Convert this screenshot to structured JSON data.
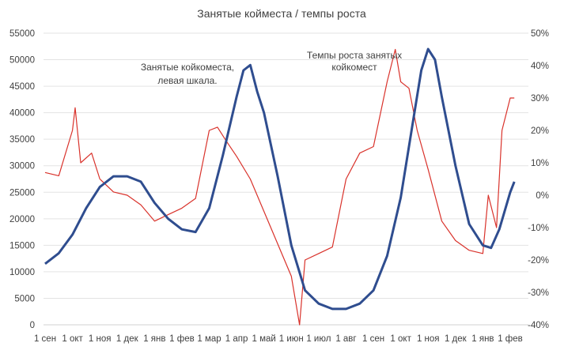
{
  "chart_data": {
    "type": "line",
    "title": "Занятые койместа / темпы роста",
    "x_unit": "months since 1 сен",
    "x_tick_labels": [
      "1 сен",
      "1 окт",
      "1 ноя",
      "1 дек",
      "1 янв",
      "1 фев",
      "1 мар",
      "1 апр",
      "1 май",
      "1 июн",
      "1 июл",
      "1 авг",
      "1 сен",
      "1 окт",
      "1 ноя",
      "1 дек",
      "1 янв",
      "1 фев"
    ],
    "y_left": {
      "range": [
        0,
        55000
      ],
      "ticks": [
        "0",
        "5000",
        "10000",
        "15000",
        "20000",
        "25000",
        "30000",
        "35000",
        "40000",
        "45000",
        "50000",
        "55000"
      ]
    },
    "y_right": {
      "range": [
        -40,
        50
      ],
      "ticks": [
        "-40%",
        "-30%",
        "-20%",
        "-10%",
        "0%",
        "10%",
        "20%",
        "30%",
        "40%",
        "50%"
      ]
    },
    "grid": true,
    "annotations": [
      "Занятые койкоместа,",
      "левая шкала.",
      "Темпы роста занятых",
      "койкомест"
    ],
    "series": [
      {
        "name": "Занятые койкоместа",
        "axis": "left",
        "color": "#2f4d8f",
        "x": [
          0,
          0.5,
          1,
          1.5,
          2,
          2.5,
          3,
          3.5,
          4,
          4.5,
          5,
          5.5,
          6,
          6.5,
          7,
          7.25,
          7.5,
          7.75,
          8,
          8.5,
          9,
          9.5,
          10,
          10.5,
          11,
          11.5,
          12,
          12.5,
          13,
          13.5,
          13.75,
          14,
          14.25,
          14.5,
          15,
          15.5,
          16,
          16.3,
          16.6,
          17,
          17.15
        ],
        "values": [
          11500,
          13500,
          17000,
          22000,
          26000,
          28000,
          28000,
          27000,
          23000,
          20000,
          18000,
          17500,
          22000,
          32000,
          43000,
          48000,
          49000,
          44000,
          40000,
          28000,
          15000,
          6500,
          4000,
          3000,
          3000,
          4000,
          6500,
          13000,
          24000,
          40000,
          48000,
          52000,
          50000,
          43000,
          30000,
          19000,
          15000,
          14500,
          18000,
          25000,
          27000
        ]
      },
      {
        "name": "Темпы роста занятых койкомест",
        "axis": "right",
        "color": "#d9322b",
        "x": [
          0,
          0.5,
          1,
          1.1,
          1.3,
          1.7,
          2,
          2.5,
          3,
          3.5,
          4,
          4.5,
          5,
          5.5,
          6,
          6.3,
          6.6,
          7,
          7.5,
          8,
          8.5,
          9,
          9.3,
          9.5,
          10,
          10.5,
          11,
          11.5,
          12,
          12.5,
          12.8,
          13,
          13.3,
          13.6,
          14,
          14.5,
          15,
          15.5,
          16,
          16.2,
          16.5,
          16.7,
          17,
          17.15
        ],
        "values": [
          7,
          6,
          20,
          27,
          10,
          13,
          5,
          1,
          0,
          -3,
          -8,
          -6,
          -4,
          -1,
          20,
          21,
          17,
          12,
          5,
          -5,
          -15,
          -25,
          -40,
          -20,
          -18,
          -16,
          5,
          13,
          15,
          35,
          45,
          35,
          33,
          20,
          8,
          -8,
          -14,
          -17,
          -18,
          0,
          -10,
          20,
          30,
          30
        ]
      }
    ]
  }
}
